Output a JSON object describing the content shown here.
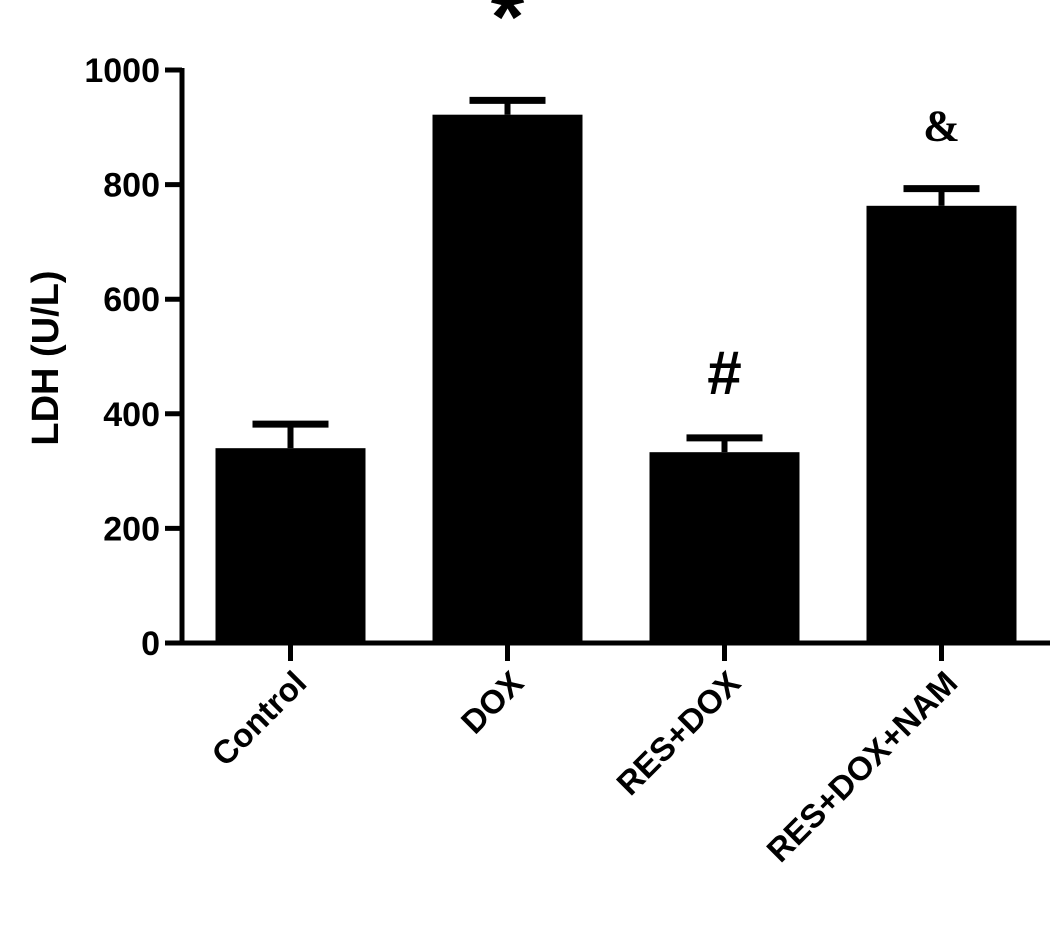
{
  "chart_data": {
    "type": "bar",
    "title": "",
    "xlabel": "",
    "ylabel": "LDH (U/L)",
    "ylim": [
      0,
      1000
    ],
    "yticks": [
      0,
      200,
      400,
      600,
      800,
      1000
    ],
    "categories": [
      "Control",
      "DOX",
      "RES+DOX",
      "RES+DOX+NAM"
    ],
    "values": [
      340,
      922,
      333,
      763
    ],
    "errors": [
      42,
      25,
      25,
      30
    ],
    "annotations": [
      "",
      "*",
      "#",
      "&"
    ],
    "bar_color": "#000000",
    "grid": false,
    "legend": "none"
  }
}
